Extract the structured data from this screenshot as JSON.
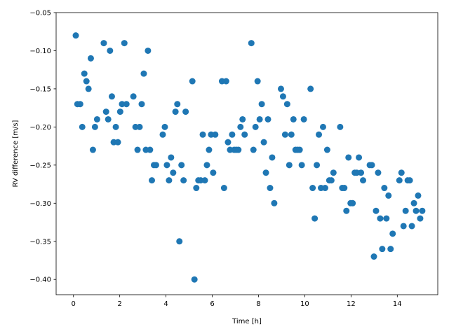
{
  "chart_data": {
    "type": "scatter",
    "title": "",
    "xlabel": "Time [h]",
    "ylabel": "RV difference [m/s]",
    "xlim": [
      -0.75,
      15.75
    ],
    "ylim": [
      -0.42,
      -0.05
    ],
    "grid": false,
    "marker_color": "#1f77b4",
    "x_ticks": [
      {
        "value": 0,
        "label": "0"
      },
      {
        "value": 2,
        "label": "2"
      },
      {
        "value": 4,
        "label": "4"
      },
      {
        "value": 6,
        "label": "6"
      },
      {
        "value": 8,
        "label": "8"
      },
      {
        "value": 10,
        "label": "10"
      },
      {
        "value": 12,
        "label": "12"
      },
      {
        "value": 14,
        "label": "14"
      }
    ],
    "y_ticks": [
      {
        "value": -0.05,
        "label": "−0.05"
      },
      {
        "value": -0.1,
        "label": "−0.10"
      },
      {
        "value": -0.15,
        "label": "−0.15"
      },
      {
        "value": -0.2,
        "label": "−0.20"
      },
      {
        "value": -0.25,
        "label": "−0.25"
      },
      {
        "value": -0.3,
        "label": "−0.30"
      },
      {
        "value": -0.35,
        "label": "−0.35"
      },
      {
        "value": -0.4,
        "label": "−0.40"
      }
    ],
    "points": [
      [
        0.1,
        -0.08
      ],
      [
        0.17,
        -0.17
      ],
      [
        0.29,
        -0.17
      ],
      [
        0.38,
        -0.2
      ],
      [
        0.47,
        -0.13
      ],
      [
        0.56,
        -0.14
      ],
      [
        0.65,
        -0.15
      ],
      [
        0.75,
        -0.11
      ],
      [
        0.84,
        -0.23
      ],
      [
        0.93,
        -0.2
      ],
      [
        1.02,
        -0.19
      ],
      [
        1.31,
        -0.09
      ],
      [
        1.41,
        -0.18
      ],
      [
        1.5,
        -0.19
      ],
      [
        1.58,
        -0.1
      ],
      [
        1.66,
        -0.16
      ],
      [
        1.74,
        -0.22
      ],
      [
        1.83,
        -0.2
      ],
      [
        1.92,
        -0.22
      ],
      [
        2.02,
        -0.18
      ],
      [
        2.1,
        -0.17
      ],
      [
        2.2,
        -0.09
      ],
      [
        2.29,
        -0.17
      ],
      [
        2.59,
        -0.16
      ],
      [
        2.68,
        -0.2
      ],
      [
        2.77,
        -0.23
      ],
      [
        2.86,
        -0.2
      ],
      [
        2.95,
        -0.17
      ],
      [
        3.04,
        -0.13
      ],
      [
        3.13,
        -0.23
      ],
      [
        3.22,
        -0.1
      ],
      [
        3.31,
        -0.23
      ],
      [
        3.39,
        -0.27
      ],
      [
        3.48,
        -0.25
      ],
      [
        3.57,
        -0.25
      ],
      [
        3.86,
        -0.21
      ],
      [
        3.95,
        -0.2
      ],
      [
        4.04,
        -0.25
      ],
      [
        4.13,
        -0.27
      ],
      [
        4.22,
        -0.24
      ],
      [
        4.31,
        -0.26
      ],
      [
        4.41,
        -0.18
      ],
      [
        4.49,
        -0.17
      ],
      [
        4.58,
        -0.35
      ],
      [
        4.67,
        -0.25
      ],
      [
        4.76,
        -0.27
      ],
      [
        4.85,
        -0.18
      ],
      [
        5.14,
        -0.14
      ],
      [
        5.23,
        -0.4
      ],
      [
        5.31,
        -0.28
      ],
      [
        5.4,
        -0.27
      ],
      [
        5.5,
        -0.27
      ],
      [
        5.59,
        -0.21
      ],
      [
        5.68,
        -0.27
      ],
      [
        5.77,
        -0.25
      ],
      [
        5.86,
        -0.23
      ],
      [
        5.95,
        -0.21
      ],
      [
        6.04,
        -0.26
      ],
      [
        6.13,
        -0.21
      ],
      [
        6.42,
        -0.14
      ],
      [
        6.51,
        -0.28
      ],
      [
        6.6,
        -0.14
      ],
      [
        6.68,
        -0.22
      ],
      [
        6.77,
        -0.23
      ],
      [
        6.86,
        -0.21
      ],
      [
        6.95,
        -0.23
      ],
      [
        7.04,
        -0.23
      ],
      [
        7.13,
        -0.23
      ],
      [
        7.22,
        -0.2
      ],
      [
        7.31,
        -0.19
      ],
      [
        7.4,
        -0.21
      ],
      [
        7.69,
        -0.09
      ],
      [
        7.78,
        -0.23
      ],
      [
        7.87,
        -0.2
      ],
      [
        7.96,
        -0.14
      ],
      [
        8.05,
        -0.19
      ],
      [
        8.14,
        -0.17
      ],
      [
        8.23,
        -0.22
      ],
      [
        8.32,
        -0.26
      ],
      [
        8.41,
        -0.19
      ],
      [
        8.5,
        -0.28
      ],
      [
        8.59,
        -0.24
      ],
      [
        8.68,
        -0.3
      ],
      [
        8.97,
        -0.15
      ],
      [
        9.06,
        -0.16
      ],
      [
        9.15,
        -0.21
      ],
      [
        9.24,
        -0.17
      ],
      [
        9.33,
        -0.25
      ],
      [
        9.42,
        -0.21
      ],
      [
        9.51,
        -0.19
      ],
      [
        9.6,
        -0.23
      ],
      [
        9.69,
        -0.23
      ],
      [
        9.78,
        -0.23
      ],
      [
        9.87,
        -0.25
      ],
      [
        9.96,
        -0.19
      ],
      [
        10.25,
        -0.15
      ],
      [
        10.34,
        -0.28
      ],
      [
        10.43,
        -0.32
      ],
      [
        10.52,
        -0.25
      ],
      [
        10.61,
        -0.21
      ],
      [
        10.7,
        -0.28
      ],
      [
        10.79,
        -0.2
      ],
      [
        10.88,
        -0.28
      ],
      [
        10.97,
        -0.23
      ],
      [
        11.06,
        -0.27
      ],
      [
        11.15,
        -0.27
      ],
      [
        11.24,
        -0.26
      ],
      [
        11.53,
        -0.2
      ],
      [
        11.62,
        -0.28
      ],
      [
        11.71,
        -0.28
      ],
      [
        11.8,
        -0.31
      ],
      [
        11.89,
        -0.24
      ],
      [
        11.98,
        -0.3
      ],
      [
        12.07,
        -0.3
      ],
      [
        12.16,
        -0.26
      ],
      [
        12.25,
        -0.26
      ],
      [
        12.34,
        -0.24
      ],
      [
        12.43,
        -0.26
      ],
      [
        12.52,
        -0.27
      ],
      [
        12.81,
        -0.25
      ],
      [
        12.9,
        -0.25
      ],
      [
        12.99,
        -0.37
      ],
      [
        13.08,
        -0.31
      ],
      [
        13.17,
        -0.26
      ],
      [
        13.26,
        -0.32
      ],
      [
        13.35,
        -0.36
      ],
      [
        13.44,
        -0.28
      ],
      [
        13.53,
        -0.32
      ],
      [
        13.62,
        -0.29
      ],
      [
        13.71,
        -0.36
      ],
      [
        13.8,
        -0.34
      ],
      [
        14.09,
        -0.27
      ],
      [
        14.18,
        -0.26
      ],
      [
        14.27,
        -0.33
      ],
      [
        14.36,
        -0.31
      ],
      [
        14.45,
        -0.27
      ],
      [
        14.54,
        -0.27
      ],
      [
        14.63,
        -0.33
      ],
      [
        14.72,
        -0.3
      ],
      [
        14.81,
        -0.31
      ],
      [
        14.9,
        -0.29
      ],
      [
        14.99,
        -0.32
      ],
      [
        15.08,
        -0.31
      ]
    ]
  }
}
